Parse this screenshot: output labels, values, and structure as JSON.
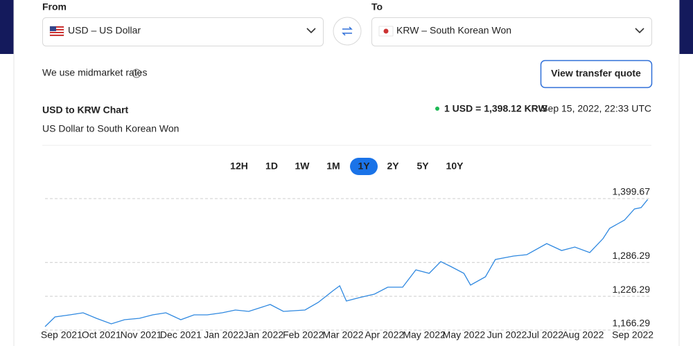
{
  "form": {
    "from_label": "From",
    "from_value": "USD – US Dollar",
    "to_label": "To",
    "to_value": "KRW – South Korean Won"
  },
  "note": "We use midmarket rates",
  "quote_button": "View transfer quote",
  "chart_data": {
    "type": "line",
    "title": "USD to KRW Chart",
    "subtitle": "US Dollar to South Korean Won",
    "rate": "1 USD = 1,398.12 KRW",
    "timestamp": "Sep 15, 2022, 22:33 UTC",
    "ranges": [
      "12H",
      "1D",
      "1W",
      "1M",
      "1Y",
      "2Y",
      "5Y",
      "10Y"
    ],
    "active_range": 4,
    "color": "#2e88e0",
    "grid": true,
    "x": [
      0,
      6,
      15,
      23,
      31,
      40,
      48,
      57,
      65,
      73,
      82,
      90,
      98,
      107,
      115,
      123,
      136,
      144,
      157,
      165,
      174,
      178,
      182,
      190,
      199,
      207,
      216,
      224,
      232,
      239,
      245,
      253,
      257,
      266,
      272,
      283,
      291,
      303,
      312,
      320,
      329,
      337,
      341,
      350,
      356,
      360,
      364
    ],
    "values": [
      1172.4,
      1189.6,
      1193.3,
      1197.0,
      1187.2,
      1177.4,
      1184.7,
      1187.2,
      1193.3,
      1197.0,
      1184.7,
      1193.3,
      1193.3,
      1197.0,
      1201.9,
      1199.5,
      1211.7,
      1199.5,
      1201.9,
      1215.4,
      1236.3,
      1244.9,
      1217.9,
      1224.0,
      1230.2,
      1242.5,
      1242.5,
      1273.2,
      1267.0,
      1287.9,
      1279.3,
      1267.0,
      1246.1,
      1260.9,
      1291.6,
      1297.7,
      1300.2,
      1319.8,
      1307.6,
      1313.7,
      1303.9,
      1328.5,
      1346.9,
      1361.6,
      1381.3,
      1383.7,
      1398.1
    ],
    "xlim": [
      0,
      365
    ],
    "xticks": [
      {
        "value": 10,
        "label": "Sep 2021"
      },
      {
        "value": 34,
        "label": "Oct 2021"
      },
      {
        "value": 58,
        "label": "Nov 2021"
      },
      {
        "value": 82,
        "label": "Dec 2021"
      },
      {
        "value": 108,
        "label": "Jan 2022"
      },
      {
        "value": 132,
        "label": "Jan 2022"
      },
      {
        "value": 156,
        "label": "Feb 2022"
      },
      {
        "value": 180,
        "label": "Mar 2022"
      },
      {
        "value": 205,
        "label": "Apr 2022"
      },
      {
        "value": 229,
        "label": "May 2022"
      },
      {
        "value": 253,
        "label": "May 2022"
      },
      {
        "value": 279,
        "label": "Jun 2022"
      },
      {
        "value": 302,
        "label": "Jul 2022"
      },
      {
        "value": 325,
        "label": "Aug 2022"
      },
      {
        "value": 355,
        "label": "Sep 2022"
      }
    ],
    "ylim": [
      1166.29,
      1399.67
    ],
    "yticks": [
      {
        "value": 1166.29,
        "label": "1,166.29"
      },
      {
        "value": 1226.29,
        "label": "1,226.29"
      },
      {
        "value": 1286.29,
        "label": "1,286.29"
      },
      {
        "value": 1399.67,
        "label": "1,399.67"
      }
    ]
  }
}
